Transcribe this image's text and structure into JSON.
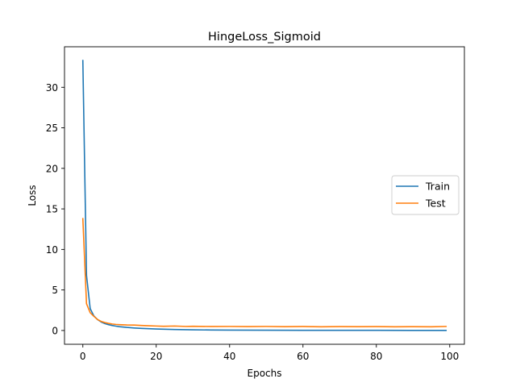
{
  "chart_data": {
    "type": "line",
    "title": "HingeLoss_Sigmoid",
    "xlabel": "Epochs",
    "ylabel": "Loss",
    "xlim": [
      -5,
      104
    ],
    "ylim": [
      -1.7,
      35
    ],
    "xticks": [
      0,
      20,
      40,
      60,
      80,
      100
    ],
    "yticks": [
      0,
      5,
      10,
      15,
      20,
      25,
      30
    ],
    "grid": false,
    "legend_position": "center-right",
    "series": [
      {
        "name": "Train",
        "color": "#1f77b4",
        "x": [
          0,
          1,
          2,
          3,
          4,
          5,
          6,
          7,
          8,
          9,
          10,
          12,
          14,
          16,
          18,
          20,
          25,
          30,
          35,
          40,
          50,
          60,
          70,
          80,
          90,
          99
        ],
        "y": [
          33.3,
          6.8,
          2.7,
          1.8,
          1.35,
          1.05,
          0.85,
          0.72,
          0.62,
          0.54,
          0.47,
          0.38,
          0.31,
          0.26,
          0.22,
          0.18,
          0.12,
          0.08,
          0.06,
          0.05,
          0.03,
          0.02,
          0.02,
          0.02,
          0.01,
          0.01
        ]
      },
      {
        "name": "Test",
        "color": "#ff7f0e",
        "x": [
          0,
          1,
          2,
          3,
          4,
          5,
          6,
          7,
          8,
          9,
          10,
          12,
          14,
          16,
          18,
          20,
          22,
          25,
          28,
          30,
          35,
          40,
          45,
          50,
          55,
          60,
          65,
          70,
          75,
          80,
          85,
          90,
          95,
          99
        ],
        "y": [
          13.8,
          3.3,
          2.2,
          1.75,
          1.35,
          1.12,
          0.98,
          0.88,
          0.8,
          0.75,
          0.72,
          0.68,
          0.67,
          0.62,
          0.58,
          0.55,
          0.52,
          0.55,
          0.5,
          0.52,
          0.49,
          0.5,
          0.48,
          0.5,
          0.47,
          0.49,
          0.46,
          0.48,
          0.47,
          0.48,
          0.46,
          0.47,
          0.46,
          0.5
        ]
      }
    ]
  }
}
